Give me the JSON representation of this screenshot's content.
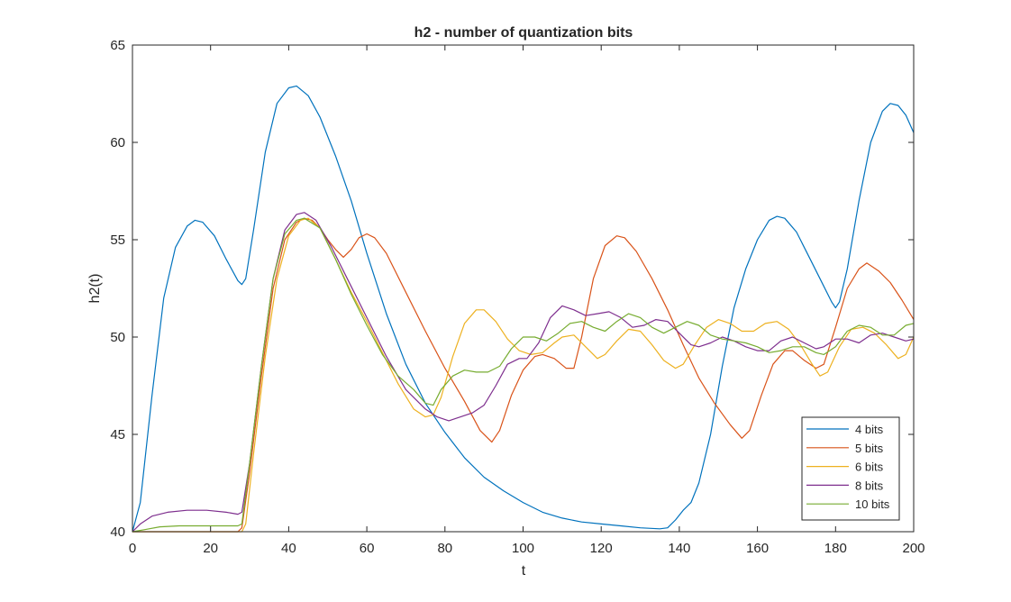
{
  "chart_data": {
    "type": "line",
    "title": "h2 - number of quantization bits",
    "xlabel": "t",
    "ylabel": "h2(t)",
    "xlim": [
      0,
      200
    ],
    "ylim": [
      40,
      65
    ],
    "xticks": [
      0,
      20,
      40,
      60,
      80,
      100,
      120,
      140,
      160,
      180,
      200
    ],
    "yticks": [
      40,
      45,
      50,
      55,
      60,
      65
    ],
    "grid": false,
    "legend_position": "bottom-right",
    "series": [
      {
        "name": "4 bits",
        "color": "#0072BD",
        "points": [
          [
            0,
            40
          ],
          [
            2,
            41.5
          ],
          [
            5,
            47
          ],
          [
            8,
            52
          ],
          [
            11,
            54.6
          ],
          [
            14,
            55.7
          ],
          [
            16,
            56
          ],
          [
            18,
            55.9
          ],
          [
            21,
            55.2
          ],
          [
            24,
            54
          ],
          [
            27,
            52.9
          ],
          [
            28,
            52.7
          ],
          [
            29,
            53
          ],
          [
            31,
            55.5
          ],
          [
            34,
            59.5
          ],
          [
            37,
            62
          ],
          [
            40,
            62.8
          ],
          [
            42,
            62.9
          ],
          [
            45,
            62.4
          ],
          [
            48,
            61.3
          ],
          [
            52,
            59.3
          ],
          [
            56,
            57
          ],
          [
            60,
            54.3
          ],
          [
            65,
            51.2
          ],
          [
            70,
            48.6
          ],
          [
            75,
            46.6
          ],
          [
            80,
            45.1
          ],
          [
            85,
            43.8
          ],
          [
            90,
            42.8
          ],
          [
            95,
            42.1
          ],
          [
            100,
            41.5
          ],
          [
            105,
            41
          ],
          [
            110,
            40.7
          ],
          [
            115,
            40.5
          ],
          [
            120,
            40.4
          ],
          [
            125,
            40.3
          ],
          [
            130,
            40.2
          ],
          [
            135,
            40.15
          ],
          [
            137,
            40.2
          ],
          [
            139,
            40.6
          ],
          [
            141,
            41.1
          ],
          [
            143,
            41.5
          ],
          [
            145,
            42.5
          ],
          [
            148,
            45
          ],
          [
            151,
            48.5
          ],
          [
            154,
            51.5
          ],
          [
            157,
            53.5
          ],
          [
            160,
            55
          ],
          [
            163,
            56
          ],
          [
            165,
            56.2
          ],
          [
            167,
            56.1
          ],
          [
            170,
            55.4
          ],
          [
            173,
            54.2
          ],
          [
            176,
            53
          ],
          [
            179,
            51.8
          ],
          [
            180,
            51.5
          ],
          [
            181,
            51.8
          ],
          [
            183,
            53.5
          ],
          [
            186,
            57
          ],
          [
            189,
            60
          ],
          [
            192,
            61.6
          ],
          [
            194,
            62
          ],
          [
            196,
            61.9
          ],
          [
            198,
            61.4
          ],
          [
            200,
            60.5
          ]
        ]
      },
      {
        "name": "5 bits",
        "color": "#D95319",
        "points": [
          [
            0,
            40
          ],
          [
            27,
            40
          ],
          [
            28,
            40.2
          ],
          [
            30,
            43
          ],
          [
            33,
            48
          ],
          [
            36,
            52.5
          ],
          [
            39,
            55
          ],
          [
            42,
            55.9
          ],
          [
            44,
            56.1
          ],
          [
            46,
            56
          ],
          [
            48,
            55.6
          ],
          [
            50,
            55
          ],
          [
            52,
            54.5
          ],
          [
            54,
            54.1
          ],
          [
            56,
            54.5
          ],
          [
            58,
            55.1
          ],
          [
            60,
            55.3
          ],
          [
            62,
            55.1
          ],
          [
            65,
            54.3
          ],
          [
            70,
            52.3
          ],
          [
            75,
            50.3
          ],
          [
            80,
            48.4
          ],
          [
            85,
            46.7
          ],
          [
            89,
            45.2
          ],
          [
            92,
            44.6
          ],
          [
            94,
            45.2
          ],
          [
            97,
            47
          ],
          [
            100,
            48.3
          ],
          [
            103,
            49
          ],
          [
            105,
            49.1
          ],
          [
            108,
            48.9
          ],
          [
            111,
            48.4
          ],
          [
            113,
            48.4
          ],
          [
            115,
            50
          ],
          [
            118,
            53
          ],
          [
            121,
            54.7
          ],
          [
            124,
            55.2
          ],
          [
            126,
            55.1
          ],
          [
            129,
            54.4
          ],
          [
            133,
            53
          ],
          [
            137,
            51.4
          ],
          [
            141,
            49.6
          ],
          [
            145,
            47.9
          ],
          [
            149,
            46.6
          ],
          [
            153,
            45.5
          ],
          [
            156,
            44.8
          ],
          [
            158,
            45.2
          ],
          [
            161,
            47
          ],
          [
            164,
            48.6
          ],
          [
            167,
            49.3
          ],
          [
            169,
            49.3
          ],
          [
            172,
            48.8
          ],
          [
            175,
            48.4
          ],
          [
            177,
            48.6
          ],
          [
            180,
            50.5
          ],
          [
            183,
            52.5
          ],
          [
            186,
            53.5
          ],
          [
            188,
            53.8
          ],
          [
            191,
            53.4
          ],
          [
            194,
            52.8
          ],
          [
            197,
            51.9
          ],
          [
            200,
            50.9
          ]
        ]
      },
      {
        "name": "6 bits",
        "color": "#EDB120",
        "points": [
          [
            0,
            40
          ],
          [
            28,
            40
          ],
          [
            29,
            40.4
          ],
          [
            31,
            44
          ],
          [
            34,
            49
          ],
          [
            37,
            53
          ],
          [
            40,
            55.2
          ],
          [
            43,
            56
          ],
          [
            45,
            56.1
          ],
          [
            48,
            55.6
          ],
          [
            52,
            54
          ],
          [
            56,
            52.3
          ],
          [
            60,
            50.8
          ],
          [
            64,
            49.2
          ],
          [
            68,
            47.6
          ],
          [
            72,
            46.3
          ],
          [
            75,
            45.9
          ],
          [
            77,
            46
          ],
          [
            79,
            46.9
          ],
          [
            82,
            49
          ],
          [
            85,
            50.7
          ],
          [
            88,
            51.4
          ],
          [
            90,
            51.4
          ],
          [
            93,
            50.8
          ],
          [
            96,
            49.9
          ],
          [
            99,
            49.3
          ],
          [
            102,
            49.1
          ],
          [
            105,
            49.2
          ],
          [
            108,
            49.7
          ],
          [
            110,
            50
          ],
          [
            113,
            50.1
          ],
          [
            116,
            49.5
          ],
          [
            119,
            48.9
          ],
          [
            121,
            49.1
          ],
          [
            124,
            49.8
          ],
          [
            127,
            50.4
          ],
          [
            130,
            50.3
          ],
          [
            133,
            49.6
          ],
          [
            136,
            48.8
          ],
          [
            139,
            48.4
          ],
          [
            141,
            48.6
          ],
          [
            144,
            49.6
          ],
          [
            147,
            50.5
          ],
          [
            150,
            50.9
          ],
          [
            153,
            50.7
          ],
          [
            156,
            50.3
          ],
          [
            159,
            50.3
          ],
          [
            162,
            50.7
          ],
          [
            165,
            50.8
          ],
          [
            168,
            50.4
          ],
          [
            171,
            49.6
          ],
          [
            174,
            48.6
          ],
          [
            176,
            48
          ],
          [
            178,
            48.2
          ],
          [
            181,
            49.5
          ],
          [
            184,
            50.4
          ],
          [
            187,
            50.5
          ],
          [
            190,
            50.2
          ],
          [
            193,
            49.6
          ],
          [
            196,
            48.9
          ],
          [
            198,
            49.1
          ],
          [
            200,
            50
          ]
        ]
      },
      {
        "name": "8 bits",
        "color": "#7E2F8E",
        "points": [
          [
            0,
            40
          ],
          [
            2,
            40.4
          ],
          [
            5,
            40.8
          ],
          [
            9,
            41
          ],
          [
            14,
            41.1
          ],
          [
            19,
            41.1
          ],
          [
            24,
            41
          ],
          [
            27,
            40.9
          ],
          [
            28,
            41
          ],
          [
            30,
            43.5
          ],
          [
            33,
            48.5
          ],
          [
            36,
            53
          ],
          [
            39,
            55.5
          ],
          [
            42,
            56.3
          ],
          [
            44,
            56.4
          ],
          [
            47,
            56
          ],
          [
            51,
            54.6
          ],
          [
            55,
            53
          ],
          [
            60,
            51
          ],
          [
            65,
            49
          ],
          [
            70,
            47.3
          ],
          [
            75,
            46.3
          ],
          [
            78,
            45.9
          ],
          [
            81,
            45.7
          ],
          [
            84,
            45.9
          ],
          [
            87,
            46.1
          ],
          [
            90,
            46.5
          ],
          [
            93,
            47.5
          ],
          [
            96,
            48.6
          ],
          [
            99,
            48.9
          ],
          [
            101,
            48.9
          ],
          [
            104,
            49.7
          ],
          [
            107,
            51
          ],
          [
            110,
            51.6
          ],
          [
            113,
            51.4
          ],
          [
            116,
            51.1
          ],
          [
            119,
            51.2
          ],
          [
            122,
            51.3
          ],
          [
            125,
            51
          ],
          [
            128,
            50.5
          ],
          [
            131,
            50.6
          ],
          [
            134,
            50.9
          ],
          [
            137,
            50.8
          ],
          [
            140,
            50.2
          ],
          [
            143,
            49.6
          ],
          [
            145,
            49.5
          ],
          [
            148,
            49.7
          ],
          [
            151,
            50
          ],
          [
            154,
            49.8
          ],
          [
            157,
            49.5
          ],
          [
            160,
            49.3
          ],
          [
            163,
            49.3
          ],
          [
            166,
            49.8
          ],
          [
            169,
            50
          ],
          [
            172,
            49.7
          ],
          [
            175,
            49.4
          ],
          [
            177,
            49.5
          ],
          [
            180,
            49.9
          ],
          [
            183,
            49.9
          ],
          [
            186,
            49.7
          ],
          [
            189,
            50.1
          ],
          [
            192,
            50.2
          ],
          [
            195,
            50
          ],
          [
            198,
            49.8
          ],
          [
            200,
            49.9
          ]
        ]
      },
      {
        "name": "10 bits",
        "color": "#77AC30",
        "points": [
          [
            0,
            40
          ],
          [
            3,
            40.1
          ],
          [
            7,
            40.25
          ],
          [
            12,
            40.3
          ],
          [
            18,
            40.3
          ],
          [
            23,
            40.3
          ],
          [
            27,
            40.3
          ],
          [
            28,
            40.4
          ],
          [
            30,
            43.5
          ],
          [
            33,
            48.5
          ],
          [
            36,
            53
          ],
          [
            39,
            55.3
          ],
          [
            42,
            56
          ],
          [
            44,
            56.1
          ],
          [
            48,
            55.6
          ],
          [
            52,
            54
          ],
          [
            56,
            52.2
          ],
          [
            60,
            50.6
          ],
          [
            64,
            49.1
          ],
          [
            68,
            48
          ],
          [
            72,
            47.3
          ],
          [
            75,
            46.6
          ],
          [
            77,
            46.5
          ],
          [
            79,
            47.3
          ],
          [
            82,
            48
          ],
          [
            85,
            48.3
          ],
          [
            88,
            48.2
          ],
          [
            91,
            48.2
          ],
          [
            94,
            48.5
          ],
          [
            97,
            49.4
          ],
          [
            100,
            50
          ],
          [
            103,
            50
          ],
          [
            106,
            49.8
          ],
          [
            109,
            50.2
          ],
          [
            112,
            50.7
          ],
          [
            115,
            50.8
          ],
          [
            118,
            50.5
          ],
          [
            121,
            50.3
          ],
          [
            124,
            50.8
          ],
          [
            127,
            51.2
          ],
          [
            130,
            51
          ],
          [
            133,
            50.5
          ],
          [
            136,
            50.2
          ],
          [
            139,
            50.5
          ],
          [
            142,
            50.8
          ],
          [
            145,
            50.6
          ],
          [
            148,
            50.1
          ],
          [
            151,
            49.9
          ],
          [
            154,
            49.8
          ],
          [
            157,
            49.7
          ],
          [
            160,
            49.5
          ],
          [
            163,
            49.2
          ],
          [
            166,
            49.3
          ],
          [
            169,
            49.5
          ],
          [
            172,
            49.5
          ],
          [
            175,
            49.2
          ],
          [
            177,
            49.1
          ],
          [
            180,
            49.5
          ],
          [
            183,
            50.3
          ],
          [
            186,
            50.6
          ],
          [
            189,
            50.5
          ],
          [
            192,
            50.1
          ],
          [
            195,
            50.1
          ],
          [
            198,
            50.6
          ],
          [
            200,
            50.7
          ]
        ]
      }
    ]
  }
}
